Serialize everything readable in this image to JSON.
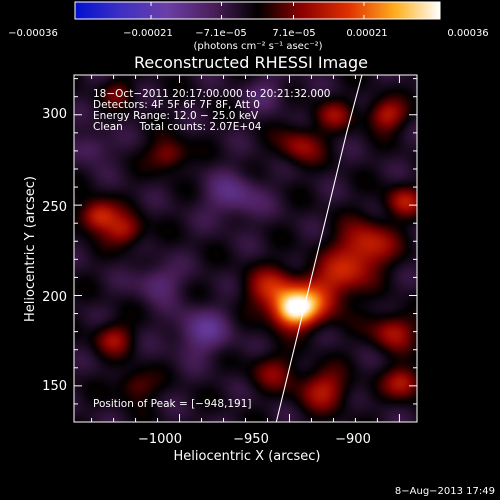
{
  "chart_data": {
    "type": "heatmap",
    "title": "Reconstructed RHESSI Image",
    "xlabel": "Heliocentric X (arcsec)",
    "ylabel": "Heliocentric Y (arcsec)",
    "xlim": [
      -1048,
      -892
    ],
    "ylim": [
      130,
      322
    ],
    "x_ticks": [
      -1000,
      -950,
      -900
    ],
    "x_tick_labels": [
      "−1000",
      "−950",
      "−900"
    ],
    "y_ticks": [
      150,
      200,
      250,
      300
    ],
    "y_tick_labels": [
      "150",
      "200",
      "250",
      "300"
    ],
    "colorbar": {
      "range": [
        -0.00036,
        0.00036
      ],
      "ticks": [
        -0.00036,
        -0.00021,
        -7.1e-05,
        7.1e-05,
        0.00021,
        0.00036
      ],
      "tick_labels": [
        "−0.00036",
        "−0.00021",
        "−7.1e−05",
        "7.1e−05",
        "0.00021",
        "0.00036"
      ],
      "unit_label": "(photons cm⁻² s⁻¹ asec⁻²)"
    },
    "info_lines": [
      "18−Oct−2011 20:17:00.000 to 20:21:32.000",
      "Detectors: 4F 5F 6F 7F 8F, Att 0",
      "Energy Range: 12.0 − 25.0 keV",
      "Clean     Total counts: 2.07E+04"
    ],
    "peak_label": "Position of Peak = [−948,191]",
    "peak": {
      "x": -948,
      "y": 191
    },
    "limb_curve": [
      [
        -956,
        130
      ],
      [
        -948,
        170
      ],
      [
        -940,
        210
      ],
      [
        -932,
        250
      ],
      [
        -924,
        290
      ],
      [
        -917,
        322
      ]
    ],
    "sources": [
      {
        "x": -948,
        "y": 192,
        "amp": 0.00036,
        "sigma": 7
      },
      {
        "x": -958,
        "y": 204,
        "amp": 0.00016,
        "sigma": 8
      },
      {
        "x": -937,
        "y": 199,
        "amp": 0.00016,
        "sigma": 9
      },
      {
        "x": -915,
        "y": 228,
        "amp": 0.00018,
        "sigma": 9
      },
      {
        "x": -925,
        "y": 213,
        "amp": 0.00014,
        "sigma": 8
      },
      {
        "x": -1037,
        "y": 244,
        "amp": 0.0002,
        "sigma": 6
      },
      {
        "x": -1025,
        "y": 236,
        "amp": 0.00015,
        "sigma": 6
      },
      {
        "x": -1005,
        "y": 278,
        "amp": 0.00013,
        "sigma": 6
      },
      {
        "x": -945,
        "y": 283,
        "amp": 0.00013,
        "sigma": 7
      },
      {
        "x": -930,
        "y": 300,
        "amp": 0.00011,
        "sigma": 6
      },
      {
        "x": -906,
        "y": 300,
        "amp": 0.00016,
        "sigma": 6
      },
      {
        "x": -898,
        "y": 252,
        "amp": 0.00014,
        "sigma": 6
      },
      {
        "x": -903,
        "y": 180,
        "amp": 0.00015,
        "sigma": 7
      },
      {
        "x": -898,
        "y": 152,
        "amp": 0.00016,
        "sigma": 6
      },
      {
        "x": -935,
        "y": 148,
        "amp": 0.00015,
        "sigma": 8
      },
      {
        "x": -958,
        "y": 158,
        "amp": 0.0001,
        "sigma": 7
      },
      {
        "x": -1030,
        "y": 176,
        "amp": 0.00013,
        "sigma": 6
      },
      {
        "x": -1020,
        "y": 150,
        "amp": 0.0001,
        "sigma": 6
      },
      {
        "x": -1028,
        "y": 312,
        "amp": 9e-05,
        "sigma": 5
      },
      {
        "x": -990,
        "y": 180,
        "amp": -0.00011,
        "sigma": 9
      },
      {
        "x": -1010,
        "y": 208,
        "amp": -9e-05,
        "sigma": 7
      },
      {
        "x": -975,
        "y": 255,
        "amp": -0.0001,
        "sigma": 9
      },
      {
        "x": -1040,
        "y": 282,
        "amp": -8e-05,
        "sigma": 6
      },
      {
        "x": -960,
        "y": 312,
        "amp": -6e-05,
        "sigma": 7
      }
    ]
  },
  "footer": {
    "timestamp": "8−Aug−2013 17:49"
  }
}
